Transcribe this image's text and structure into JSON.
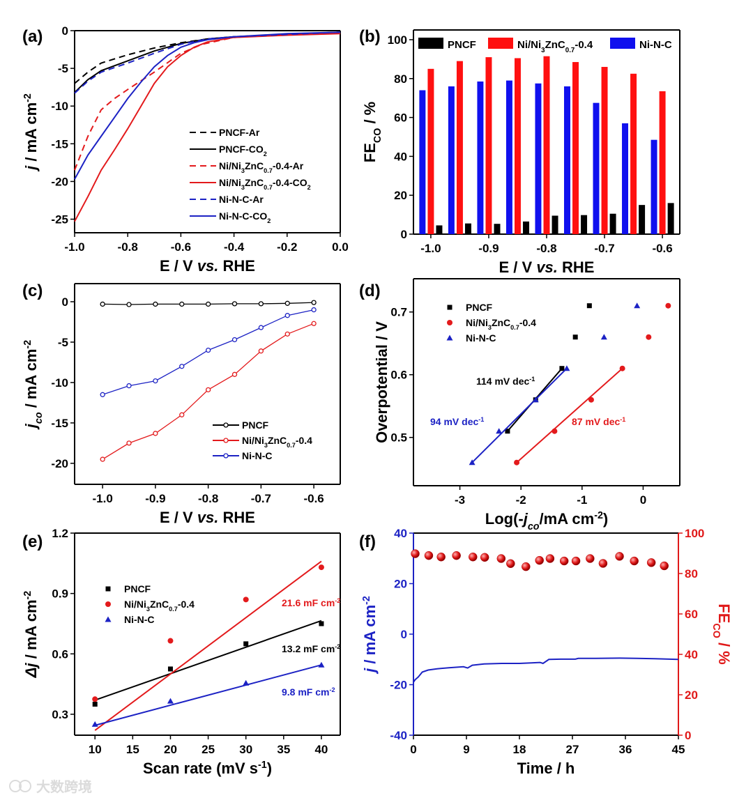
{
  "watermark": "大数跨境",
  "colors": {
    "black": "#000000",
    "red": "#e31a1c",
    "blue": "#1c22c4",
    "bar_red": "#ff1010",
    "bar_blue": "#1010ee",
    "fe_red": "#e01818"
  },
  "chart_data": [
    {
      "id": "a",
      "panel_label": "(a)",
      "type": "line",
      "xlabel": "E / V *{vs.} RHE",
      "ylabel": "*{j} / mA cm^{-2}",
      "xlim": [
        -1.0,
        0.0
      ],
      "ylim": [
        -26.8,
        0
      ],
      "xticks": [
        -1.0,
        -0.8,
        -0.6,
        -0.4,
        -0.2,
        0.0
      ],
      "xticklabels": [
        "-1.0",
        "-0.8",
        "-0.6",
        "-0.4",
        "-0.2",
        "0.0"
      ],
      "yticks": [
        0,
        -5,
        -10,
        -15,
        -20,
        -25
      ],
      "yticklabels": [
        "0",
        "-5",
        "-10",
        "-15",
        "-20",
        "-25"
      ],
      "series": [
        {
          "name": "PNCF-Ar",
          "color": "black",
          "dash": true,
          "x": [
            -1,
            -0.95,
            -0.9,
            -0.8,
            -0.7,
            -0.6,
            -0.5,
            -0.4,
            -0.2,
            0
          ],
          "y": [
            -7,
            -5.5,
            -4.3,
            -3.2,
            -2.3,
            -1.6,
            -1.1,
            -0.8,
            -0.5,
            -0.2
          ]
        },
        {
          "name": "PNCF-CO_{2}",
          "color": "black",
          "dash": false,
          "x": [
            -1,
            -0.95,
            -0.9,
            -0.8,
            -0.7,
            -0.6,
            -0.5,
            -0.4,
            -0.2,
            0
          ],
          "y": [
            -8.2,
            -6.5,
            -5.3,
            -4,
            -2.7,
            -1.7,
            -1.1,
            -0.8,
            -0.5,
            -0.3
          ]
        },
        {
          "name": "Ni/Ni_{3}ZnC_{0.7}-0.4-Ar",
          "color": "red",
          "dash": true,
          "x": [
            -1,
            -0.95,
            -0.9,
            -0.85,
            -0.8,
            -0.7,
            -0.6,
            -0.52,
            -0.4,
            -0.2,
            0
          ],
          "y": [
            -18.5,
            -14,
            -10.5,
            -9,
            -7.8,
            -5.5,
            -3,
            -1.8,
            -0.9,
            -0.5,
            -0.3
          ]
        },
        {
          "name": "Ni/Ni_{3}ZnC_{0.7}-0.4-CO_{2}",
          "color": "red",
          "dash": false,
          "x": [
            -1,
            -0.95,
            -0.9,
            -0.85,
            -0.8,
            -0.75,
            -0.7,
            -0.65,
            -0.6,
            -0.55,
            -0.5,
            -0.4,
            -0.2,
            0
          ],
          "y": [
            -25.3,
            -22,
            -18.5,
            -15.8,
            -13,
            -10,
            -7,
            -4.8,
            -3.3,
            -2.2,
            -1.5,
            -0.9,
            -0.6,
            -0.4
          ]
        },
        {
          "name": "Ni-N-C-Ar",
          "color": "blue",
          "dash": true,
          "x": [
            -1,
            -0.95,
            -0.9,
            -0.8,
            -0.7,
            -0.6,
            -0.5,
            -0.4,
            0
          ],
          "y": [
            -8.3,
            -6.7,
            -5.5,
            -4.3,
            -3,
            -1.8,
            -1.1,
            -0.8,
            -0.2
          ]
        },
        {
          "name": "Ni-N-C-CO_{2}",
          "color": "blue",
          "dash": false,
          "x": [
            -1,
            -0.95,
            -0.9,
            -0.85,
            -0.8,
            -0.75,
            -0.7,
            -0.65,
            -0.6,
            -0.55,
            -0.5,
            -0.4,
            -0.2,
            0
          ],
          "y": [
            -19.7,
            -16.5,
            -14,
            -11.5,
            -9,
            -6.8,
            -4.8,
            -3.3,
            -2.2,
            -1.6,
            -1.2,
            -0.8,
            -0.4,
            -0.2
          ]
        }
      ],
      "legend": "center-right"
    },
    {
      "id": "b",
      "panel_label": "(b)",
      "type": "bar",
      "xlabel": "E / V *{vs.} RHE",
      "ylabel": "FE_{CO} / %",
      "xlim": [
        -1.03,
        -0.57
      ],
      "ylim": [
        0,
        105
      ],
      "xticks": [
        -1.0,
        -0.9,
        -0.8,
        -0.7,
        -0.6
      ],
      "xticklabels": [
        "-1.0",
        "-0.9",
        "-0.8",
        "-0.7",
        "-0.6"
      ],
      "yticks": [
        0,
        20,
        40,
        60,
        80,
        100
      ],
      "yticklabels": [
        "0",
        "20",
        "40",
        "60",
        "80",
        "100"
      ],
      "categories": [
        -1.0,
        -0.95,
        -0.9,
        -0.85,
        -0.8,
        -0.75,
        -0.7,
        -0.65,
        -0.6
      ],
      "series": [
        {
          "name": "Ni-N-C",
          "color": "bar_blue",
          "values": [
            74,
            76,
            78.5,
            79,
            77.5,
            76,
            67.5,
            57,
            48.5
          ]
        },
        {
          "name": "Ni/Ni_{3}ZnC_{0.7}-0.4",
          "color": "bar_red",
          "values": [
            85,
            89,
            91,
            90.5,
            91.5,
            88.5,
            86,
            82.5,
            73.5
          ]
        },
        {
          "name": "PNCF",
          "color": "black",
          "values": [
            4.5,
            5.5,
            5.3,
            6.5,
            9.5,
            9.8,
            10.5,
            15,
            16
          ]
        }
      ],
      "legend_order": [
        2,
        1,
        0
      ],
      "legend": "top"
    },
    {
      "id": "c",
      "panel_label": "(c)",
      "type": "line",
      "xlabel": "E / V *{vs.} RHE",
      "ylabel": "*{j_{co}} / mA cm^{-2}",
      "xlim": [
        -1.053,
        -0.55
      ],
      "ylim": [
        -22.6,
        2.24
      ],
      "xticks": [
        -1.0,
        -0.9,
        -0.8,
        -0.7,
        -0.6
      ],
      "xticklabels": [
        "-1.0",
        "-0.9",
        "-0.8",
        "-0.7",
        "-0.6"
      ],
      "yticks": [
        0,
        -5,
        -10,
        -15,
        -20
      ],
      "yticklabels": [
        "0",
        "-5",
        "-10",
        "-15",
        "-20"
      ],
      "series": [
        {
          "name": "PNCF",
          "color": "black",
          "marker": "open-circle",
          "x": [
            -1,
            -0.95,
            -0.9,
            -0.85,
            -0.8,
            -0.75,
            -0.7,
            -0.65,
            -0.6
          ],
          "y": [
            -0.3,
            -0.35,
            -0.3,
            -0.3,
            -0.3,
            -0.25,
            -0.25,
            -0.2,
            -0.1
          ]
        },
        {
          "name": "Ni/Ni_{3}ZnC_{0.7}-0.4",
          "color": "red",
          "marker": "open-circle",
          "x": [
            -1,
            -0.95,
            -0.9,
            -0.85,
            -0.8,
            -0.75,
            -0.7,
            -0.65,
            -0.6
          ],
          "y": [
            -19.5,
            -17.5,
            -16.3,
            -14,
            -10.9,
            -9,
            -6.1,
            -4,
            -2.7
          ]
        },
        {
          "name": "Ni-N-C",
          "color": "blue",
          "marker": "open-circle",
          "x": [
            -1,
            -0.95,
            -0.9,
            -0.85,
            -0.8,
            -0.75,
            -0.7,
            -0.65,
            -0.6
          ],
          "y": [
            -11.5,
            -10.4,
            -9.8,
            -8,
            -6,
            -4.7,
            -3.2,
            -1.7,
            -1
          ]
        }
      ],
      "legend": "bottom-right"
    },
    {
      "id": "d",
      "panel_label": "(d)",
      "type": "scatter",
      "xlabel": "Log(-*{j_{co}}/mA cm^{-2})",
      "ylabel": "Overpotential / V",
      "xlim": [
        -3.76,
        0.6
      ],
      "ylim": [
        0.423,
        0.753
      ],
      "xticks": [
        -3,
        -2,
        -1,
        0
      ],
      "xticklabels": [
        "-3",
        "-2",
        "-1",
        "0"
      ],
      "yticks": [
        0.5,
        0.6,
        0.7
      ],
      "yticklabels": [
        "0.5",
        "0.6",
        "0.7"
      ],
      "series": [
        {
          "name": "PNCF",
          "color": "black",
          "marker": "square",
          "x": [
            -0.88,
            -1.11,
            -1.33,
            -1.76,
            -2.22
          ],
          "y": [
            0.71,
            0.66,
            0.61,
            0.56,
            0.51
          ],
          "fit": [
            [
              -2.22,
              0.51
            ],
            [
              -1.33,
              0.61
            ]
          ]
        },
        {
          "name": "Ni/Ni_{3}ZnC_{0.7}-0.4",
          "color": "red",
          "marker": "circle",
          "x": [
            0.41,
            0.09,
            -0.34,
            -0.85,
            -1.45,
            -2.07
          ],
          "y": [
            0.71,
            0.66,
            0.61,
            0.56,
            0.51,
            0.46
          ],
          "fit": [
            [
              -2.07,
              0.46
            ],
            [
              -0.34,
              0.61
            ]
          ]
        },
        {
          "name": "Ni-N-C",
          "color": "blue",
          "marker": "triangle",
          "x": [
            -0.1,
            -0.64,
            -1.25,
            -1.76,
            -2.36,
            -2.8
          ],
          "y": [
            0.71,
            0.66,
            0.61,
            0.56,
            0.51,
            0.46
          ],
          "fit": [
            [
              -2.8,
              0.46
            ],
            [
              -1.25,
              0.61
            ]
          ]
        }
      ],
      "annotations": [
        {
          "text": "114 mV dec^{-1}",
          "color": "black"
        },
        {
          "text": "94 mV dec^{-1}",
          "color": "blue"
        },
        {
          "text": "87 mV dec^{-1}",
          "color": "red"
        }
      ],
      "legend": "top-left"
    },
    {
      "id": "e",
      "panel_label": "(e)",
      "type": "scatter",
      "xlabel": "Scan rate (mV s^{-1})",
      "ylabel": "*{Δj} / mA cm^{-2}",
      "xlim": [
        7.3,
        42.5
      ],
      "ylim": [
        0.196,
        1.2
      ],
      "xticks": [
        10,
        15,
        20,
        25,
        30,
        35,
        40
      ],
      "xticklabels": [
        "10",
        "15",
        "20",
        "25",
        "30",
        "35",
        "40"
      ],
      "yticks": [
        0.3,
        0.6,
        0.9,
        1.2
      ],
      "yticklabels": [
        "0.3",
        "0.6",
        "0.9",
        "1.2"
      ],
      "series": [
        {
          "name": "PNCF",
          "color": "black",
          "marker": "square",
          "x": [
            10,
            20,
            30,
            40
          ],
          "y": [
            0.35,
            0.525,
            0.65,
            0.75
          ],
          "fit": [
            [
              10,
              0.37
            ],
            [
              40,
              0.765
            ]
          ]
        },
        {
          "name": "Ni/Ni_{3}ZnC_{0.7}-0.4",
          "color": "red",
          "marker": "circle",
          "x": [
            10,
            20,
            30,
            40
          ],
          "y": [
            0.375,
            0.665,
            0.87,
            1.03
          ],
          "fit": [
            [
              10,
              0.22
            ],
            [
              40,
              1.06
            ]
          ]
        },
        {
          "name": "Ni-N-C",
          "color": "blue",
          "marker": "triangle",
          "x": [
            10,
            20,
            30,
            40
          ],
          "y": [
            0.25,
            0.365,
            0.455,
            0.545
          ],
          "fit": [
            [
              10,
              0.245
            ],
            [
              40,
              0.545
            ]
          ]
        }
      ],
      "annotations": [
        {
          "text": "21.6 mF cm^{-2}",
          "color": "red"
        },
        {
          "text": "13.2 mF cm^{-2}",
          "color": "black"
        },
        {
          "text": "9.8 mF cm^{-2}",
          "color": "blue"
        }
      ],
      "legend": "top-left"
    },
    {
      "id": "f",
      "panel_label": "(f)",
      "type": "line+scatter",
      "xlabel": "Time / h",
      "ylabel": "*{j} / mA cm^{-2}",
      "y2label": "FE_{CO} / %",
      "xlim": [
        0,
        45
      ],
      "ylim": [
        -40,
        40
      ],
      "y2lim": [
        0,
        100
      ],
      "xticks": [
        0,
        9,
        18,
        27,
        36,
        45
      ],
      "xticklabels": [
        "0",
        "9",
        "18",
        "27",
        "36",
        "45"
      ],
      "yticks": [
        -40,
        -20,
        0,
        20,
        40
      ],
      "yticklabels": [
        "-40",
        "-20",
        "0",
        "20",
        "40"
      ],
      "y2ticks": [
        0,
        20,
        40,
        60,
        80,
        100
      ],
      "y2ticklabels": [
        "0",
        "20",
        "40",
        "60",
        "80",
        "100"
      ],
      "series": [
        {
          "name": "j",
          "axis": "left",
          "color": "blue",
          "x": [
            0,
            0.3,
            0.8,
            1.5,
            2.5,
            4,
            6,
            8.5,
            9.2,
            10,
            12,
            15,
            18,
            20,
            21.5,
            22,
            23,
            25,
            27.5,
            28,
            31,
            35,
            38,
            41,
            45
          ],
          "y": [
            -19,
            -18,
            -17,
            -15,
            -14.2,
            -13.7,
            -13.3,
            -12.9,
            -13.4,
            -12.3,
            -11.8,
            -11.6,
            -11.6,
            -11.4,
            -11.2,
            -11.6,
            -10,
            -9.9,
            -9.9,
            -9.6,
            -9.6,
            -9.5,
            -9.6,
            -9.7,
            -10
          ]
        },
        {
          "name": "FE_{CO}",
          "axis": "right",
          "color": "fe_red",
          "marker": "sphere",
          "x": [
            0.3,
            2.6,
            4.7,
            7.3,
            10.1,
            12.1,
            14.9,
            16.5,
            19.1,
            21.4,
            23.2,
            25.6,
            27.6,
            30,
            32.2,
            35,
            37.5,
            40.4,
            42.6
          ],
          "y": [
            89.8,
            88.9,
            88.2,
            88.9,
            88.2,
            88,
            87.4,
            84.9,
            83.4,
            86.5,
            87.4,
            86.2,
            86.2,
            87.4,
            85,
            88.5,
            86.2,
            85.4,
            83.8
          ]
        }
      ]
    }
  ]
}
